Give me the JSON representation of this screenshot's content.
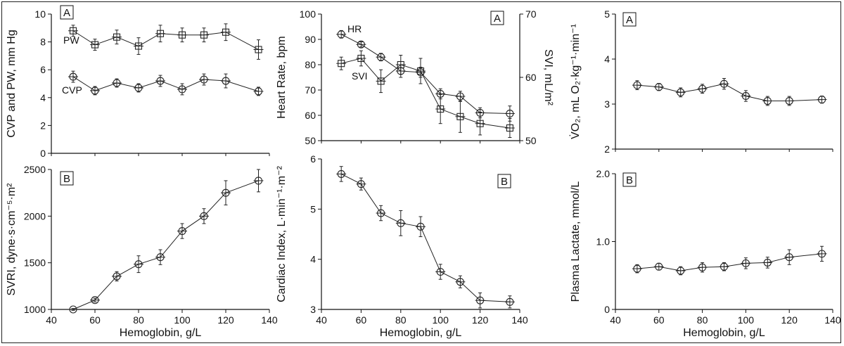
{
  "chart_data": [
    {
      "id": "p1",
      "type": "line",
      "panel_label": "A",
      "ylabel": "CVP and PW, mm Hg",
      "ylim": [
        0,
        10
      ],
      "yticks": [
        0,
        2,
        4,
        6,
        8,
        10
      ],
      "xlim": [
        40,
        140
      ],
      "xticks": [],
      "series": [
        {
          "name": "PW",
          "marker": "square",
          "x": [
            50,
            60,
            70,
            80,
            90,
            100,
            110,
            120,
            135
          ],
          "y": [
            8.8,
            7.8,
            8.35,
            7.7,
            8.6,
            8.5,
            8.5,
            8.7,
            7.45
          ],
          "err": [
            0.4,
            0.4,
            0.5,
            0.6,
            0.6,
            0.5,
            0.5,
            0.6,
            0.7
          ]
        },
        {
          "name": "CVP",
          "marker": "circle",
          "x": [
            50,
            60,
            70,
            80,
            90,
            100,
            110,
            120,
            135
          ],
          "y": [
            5.5,
            4.5,
            5.05,
            4.7,
            5.2,
            4.6,
            5.3,
            5.2,
            4.45
          ],
          "err": [
            0.4,
            0.3,
            0.3,
            0.3,
            0.4,
            0.4,
            0.4,
            0.5,
            0.3
          ]
        }
      ]
    },
    {
      "id": "p2",
      "type": "line",
      "panel_label": "B",
      "ylabel": "SVRI, dyne·s·cm⁻⁵·m²",
      "xlabel": "Hemoglobin, g/L",
      "ylim": [
        1000,
        2500
      ],
      "yticks": [
        1000,
        1500,
        2000,
        2500
      ],
      "xlim": [
        40,
        140
      ],
      "xticks": [
        40,
        60,
        80,
        100,
        120,
        140
      ],
      "series": [
        {
          "name": "",
          "marker": "circle",
          "x": [
            50,
            60,
            70,
            80,
            90,
            100,
            110,
            120,
            135
          ],
          "y": [
            1000,
            1100,
            1355,
            1485,
            1560,
            1840,
            2000,
            2250,
            2380
          ],
          "err": [
            10,
            20,
            50,
            90,
            80,
            80,
            80,
            130,
            120
          ]
        }
      ]
    },
    {
      "id": "p3",
      "type": "line",
      "panel_label": "A",
      "ylabel": "Heart Rate, bpm",
      "y2label": "SVI, mL/m²",
      "ylim": [
        50,
        100
      ],
      "yticks": [
        50,
        60,
        70,
        80,
        90,
        100
      ],
      "y2lim": [
        50,
        70
      ],
      "y2ticks": [
        50,
        60,
        70
      ],
      "xlim": [
        40,
        140
      ],
      "xticks": [],
      "series": [
        {
          "name": "HR",
          "marker": "circle",
          "axis": "left",
          "x": [
            50,
            60,
            70,
            80,
            90,
            100,
            110,
            120,
            135
          ],
          "y": [
            92,
            88,
            83,
            77.5,
            77,
            68.5,
            67.5,
            61,
            60.7
          ],
          "err": [
            1.5,
            1,
            1.5,
            2.5,
            2,
            2,
            2,
            2,
            3
          ]
        },
        {
          "name": "SVI",
          "marker": "square",
          "axis": "right",
          "x": [
            50,
            60,
            70,
            80,
            90,
            100,
            110,
            120,
            135
          ],
          "y": [
            62.2,
            63,
            59.4,
            62,
            61,
            55,
            53.8,
            52.7,
            52
          ],
          "err": [
            1,
            1.2,
            1.8,
            1.5,
            2,
            2.3,
            2.5,
            1.8,
            1.5
          ]
        }
      ]
    },
    {
      "id": "p4",
      "type": "line",
      "panel_label": "B",
      "ylabel": "Cardiac Index, L·min⁻¹·m⁻²",
      "xlabel": "Hemoglobin, g/L",
      "ylim": [
        3,
        6
      ],
      "yticks": [
        3,
        4,
        5,
        6
      ],
      "xlim": [
        40,
        140
      ],
      "xticks": [
        40,
        60,
        80,
        100,
        120,
        140
      ],
      "series": [
        {
          "name": "",
          "marker": "circle",
          "x": [
            50,
            60,
            70,
            80,
            90,
            100,
            110,
            120,
            135
          ],
          "y": [
            5.7,
            5.5,
            4.92,
            4.72,
            4.65,
            3.75,
            3.55,
            3.18,
            3.15
          ],
          "err": [
            0.15,
            0.12,
            0.15,
            0.25,
            0.2,
            0.15,
            0.12,
            0.15,
            0.12
          ]
        }
      ]
    },
    {
      "id": "p5",
      "type": "line",
      "panel_label": "A",
      "ylabel": "V̇O₂, mL O₂·kg⁻¹·min⁻¹",
      "ylim": [
        2,
        5
      ],
      "yticks": [
        2,
        3,
        4,
        5
      ],
      "xlim": [
        40,
        140
      ],
      "xticks": [],
      "series": [
        {
          "name": "",
          "marker": "circle",
          "x": [
            50,
            60,
            70,
            80,
            90,
            100,
            110,
            120,
            135
          ],
          "y": [
            3.42,
            3.38,
            3.26,
            3.34,
            3.45,
            3.18,
            3.07,
            3.07,
            3.1
          ],
          "err": [
            0.1,
            0.08,
            0.1,
            0.1,
            0.12,
            0.12,
            0.1,
            0.1,
            0.08
          ]
        }
      ]
    },
    {
      "id": "p6",
      "type": "line",
      "panel_label": "B",
      "ylabel": "Plasma Lactate, mmol/L",
      "xlabel": "Hemoglobin, g/L",
      "ylim": [
        0,
        2
      ],
      "yticks": [
        0,
        1.0,
        2.0
      ],
      "ytick_labels": [
        "0",
        "1.0",
        "2.0"
      ],
      "xlim": [
        40,
        140
      ],
      "xticks": [
        40,
        60,
        80,
        100,
        120,
        140
      ],
      "series": [
        {
          "name": "",
          "marker": "circle",
          "x": [
            50,
            60,
            70,
            80,
            90,
            100,
            110,
            120,
            135
          ],
          "y": [
            0.6,
            0.63,
            0.57,
            0.62,
            0.63,
            0.68,
            0.69,
            0.77,
            0.82
          ],
          "err": [
            0.06,
            0.05,
            0.06,
            0.07,
            0.06,
            0.08,
            0.08,
            0.11,
            0.11
          ]
        }
      ]
    }
  ]
}
